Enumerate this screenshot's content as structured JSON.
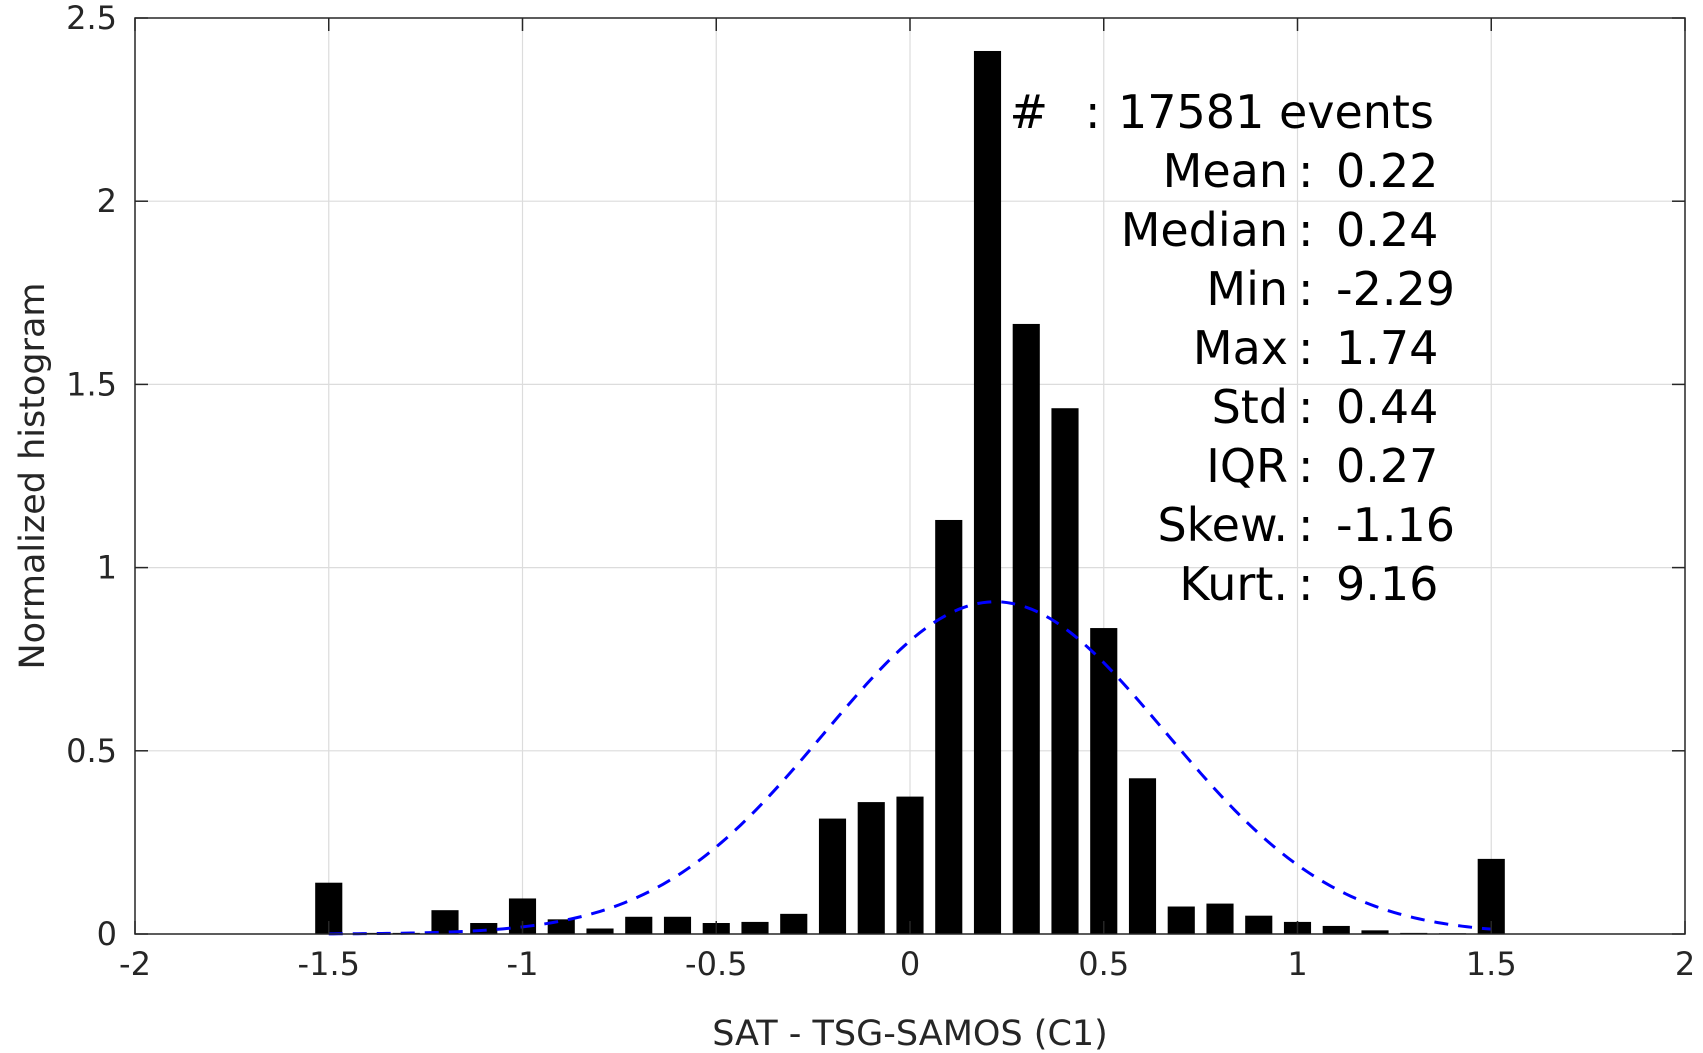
{
  "chart_data": {
    "type": "bar",
    "xlabel": "SAT - TSG-SAMOS (C1)",
    "ylabel": "Normalized histogram",
    "xlim": [
      -2,
      2
    ],
    "ylim": [
      0,
      2.5
    ],
    "xticks": [
      -2,
      -1.5,
      -1,
      -0.5,
      0,
      0.5,
      1,
      1.5,
      2
    ],
    "xtick_labels": [
      "-2",
      "-1.5",
      "-1",
      "-0.5",
      "0",
      "0.5",
      "1",
      "1.5",
      "2"
    ],
    "yticks": [
      0,
      0.5,
      1,
      1.5,
      2,
      2.5
    ],
    "ytick_labels": [
      "0",
      "0.5",
      "1",
      "1.5",
      "2",
      "2.5"
    ],
    "grid": true,
    "bar_color": "#000000",
    "bar_width": 0.07,
    "bars": {
      "x": [
        -1.5,
        -1.4,
        -1.3,
        -1.2,
        -1.1,
        -1.0,
        -0.9,
        -0.8,
        -0.7,
        -0.6,
        -0.5,
        -0.4,
        -0.3,
        -0.2,
        -0.1,
        0.0,
        0.1,
        0.2,
        0.3,
        0.4,
        0.5,
        0.6,
        0.7,
        0.8,
        0.9,
        1.0,
        1.1,
        1.2,
        1.3,
        1.4,
        1.5
      ],
      "values": [
        0.14,
        0.003,
        0.003,
        0.065,
        0.03,
        0.097,
        0.04,
        0.015,
        0.047,
        0.047,
        0.03,
        0.033,
        0.055,
        0.315,
        0.36,
        0.375,
        1.13,
        2.41,
        1.665,
        1.435,
        0.835,
        0.425,
        0.075,
        0.083,
        0.05,
        0.033,
        0.022,
        0.01,
        0.003,
        0.002,
        0.205
      ]
    },
    "fit_curve": {
      "type": "normal",
      "mean": 0.22,
      "std": 0.44,
      "x_range": [
        -1.5,
        1.5
      ],
      "color": "#0000ff",
      "style": "dashed"
    },
    "annotations": [
      {
        "label": "#",
        "sep": ":",
        "value": "17581 events"
      },
      {
        "label": "Mean",
        "sep": ":",
        "value": "0.22"
      },
      {
        "label": "Median",
        "sep": ":",
        "value": "0.24"
      },
      {
        "label": "Min",
        "sep": ":",
        "value": "-2.29"
      },
      {
        "label": "Max",
        "sep": ":",
        "value": "1.74"
      },
      {
        "label": "Std",
        "sep": ":",
        "value": "0.44"
      },
      {
        "label": "IQR",
        "sep": ":",
        "value": "0.27"
      },
      {
        "label": "Skew.",
        "sep": ":",
        "value": "-1.16"
      },
      {
        "label": "Kurt.",
        "sep": ":",
        "value": "9.16"
      }
    ]
  }
}
